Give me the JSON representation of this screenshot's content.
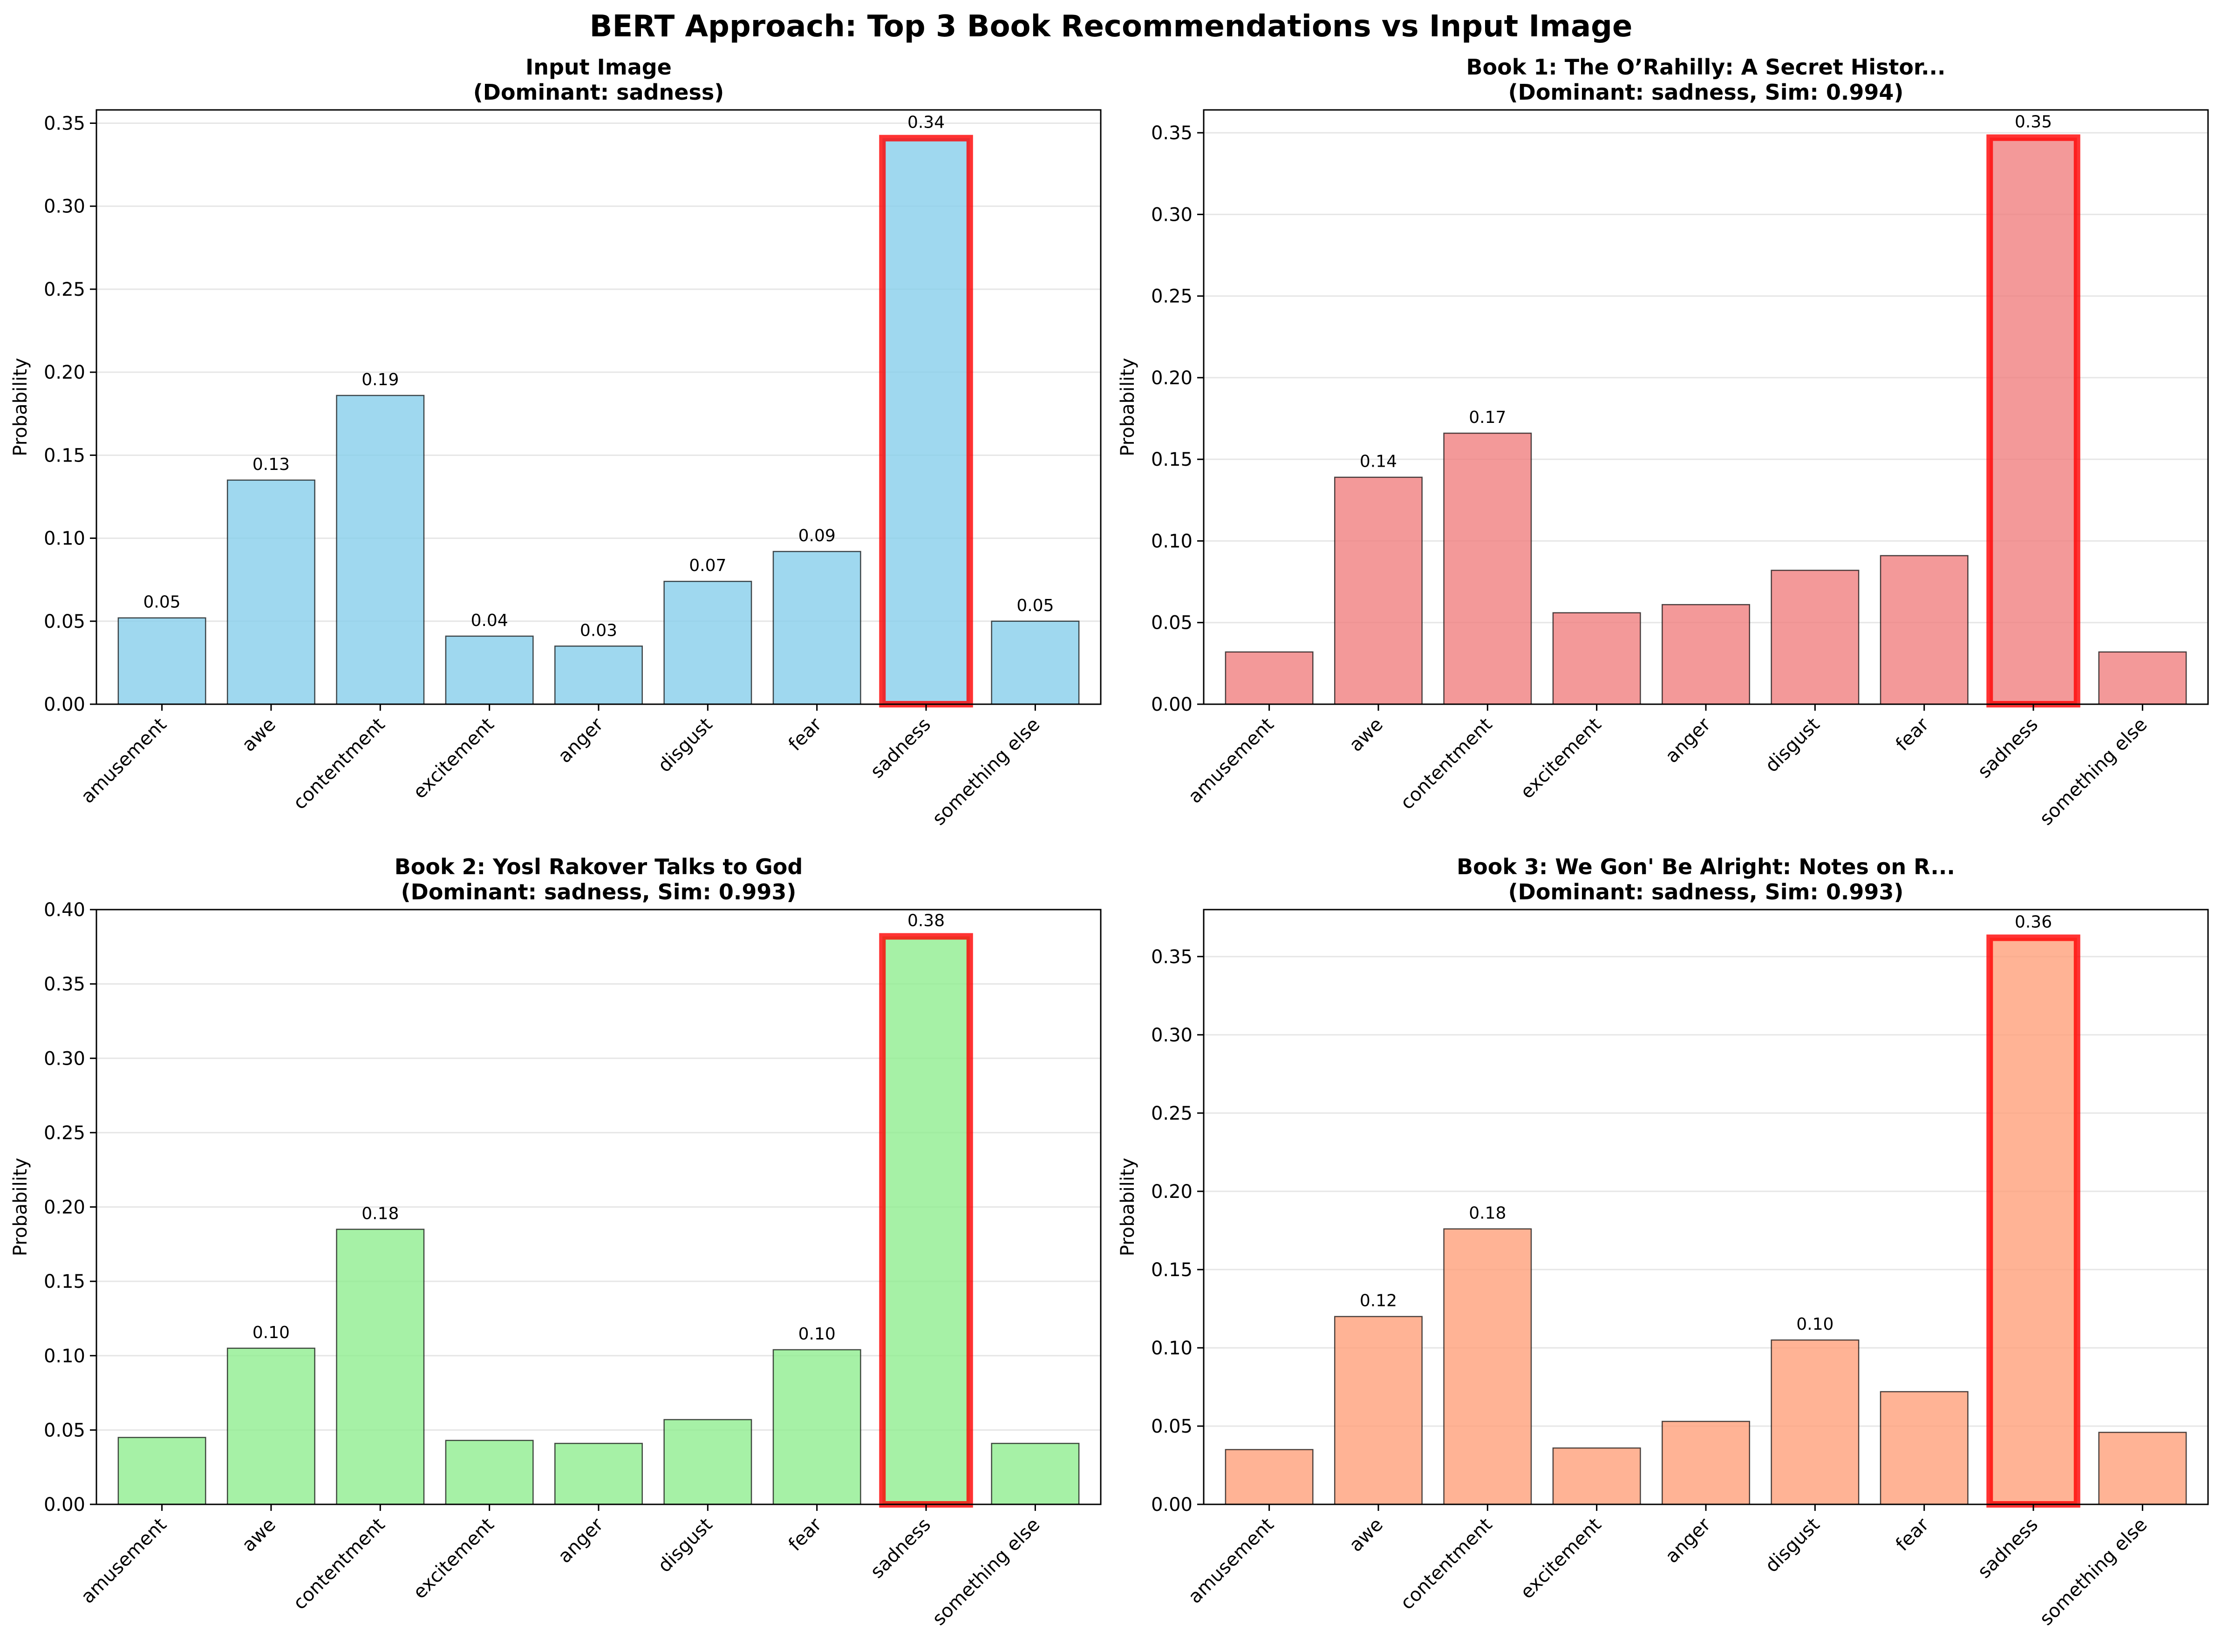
{
  "suptitle": "BERT Approach: Top 3 Book Recommendations vs Input Image",
  "chart_data": [
    {
      "type": "bar",
      "title_line1": "Input Image",
      "title_line2": "(Dominant: sadness)",
      "ylabel": "Probability",
      "categories": [
        "amusement",
        "awe",
        "contentment",
        "excitement",
        "anger",
        "disgust",
        "fear",
        "sadness",
        "something else"
      ],
      "values": [
        0.052,
        0.135,
        0.186,
        0.041,
        0.035,
        0.074,
        0.092,
        0.341,
        0.05
      ],
      "value_labels": [
        "0.05",
        "0.13",
        "0.19",
        "0.04",
        "0.03",
        "0.07",
        "0.09",
        "0.34",
        "0.05"
      ],
      "highlight_index": 7,
      "ylim": [
        0,
        0.358
      ],
      "yticks": [
        "0.00",
        "0.05",
        "0.10",
        "0.15",
        "0.20",
        "0.25",
        "0.30",
        "0.35"
      ],
      "grid": true,
      "bar_color": "#87ceeb",
      "highlight_color": "#ff0000"
    },
    {
      "type": "bar",
      "title_line1": "Book 1: The O’Rahilly: A Secret Histor...",
      "title_line2": "(Dominant: sadness, Sim: 0.994)",
      "ylabel": "Probability",
      "categories": [
        "amusement",
        "awe",
        "contentment",
        "excitement",
        "anger",
        "disgust",
        "fear",
        "sadness",
        "something else"
      ],
      "values": [
        0.032,
        0.139,
        0.166,
        0.056,
        0.061,
        0.082,
        0.091,
        0.347,
        0.032
      ],
      "value_labels": [
        "",
        "0.14",
        "0.17",
        "",
        "",
        "",
        "",
        "0.35",
        ""
      ],
      "highlight_index": 7,
      "ylim": [
        0,
        0.364
      ],
      "yticks": [
        "0.00",
        "0.05",
        "0.10",
        "0.15",
        "0.20",
        "0.25",
        "0.30",
        "0.35"
      ],
      "grid": true,
      "bar_color": "#f08080",
      "highlight_color": "#ff0000"
    },
    {
      "type": "bar",
      "title_line1": "Book 2: Yosl Rakover Talks to God",
      "title_line2": "(Dominant: sadness, Sim: 0.993)",
      "ylabel": "Probability",
      "categories": [
        "amusement",
        "awe",
        "contentment",
        "excitement",
        "anger",
        "disgust",
        "fear",
        "sadness",
        "something else"
      ],
      "values": [
        0.045,
        0.105,
        0.185,
        0.043,
        0.041,
        0.057,
        0.104,
        0.382,
        0.041
      ],
      "value_labels": [
        "",
        "0.10",
        "0.18",
        "",
        "",
        "",
        "0.10",
        "0.38",
        ""
      ],
      "highlight_index": 7,
      "ylim": [
        0,
        0.4
      ],
      "yticks": [
        "0.00",
        "0.05",
        "0.10",
        "0.15",
        "0.20",
        "0.25",
        "0.30",
        "0.35",
        "0.40"
      ],
      "grid": true,
      "bar_color": "#90ee90",
      "highlight_color": "#ff0000"
    },
    {
      "type": "bar",
      "title_line1": "Book 3: We Gon' Be Alright: Notes on R...",
      "title_line2": "(Dominant: sadness, Sim: 0.993)",
      "ylabel": "Probability",
      "categories": [
        "amusement",
        "awe",
        "contentment",
        "excitement",
        "anger",
        "disgust",
        "fear",
        "sadness",
        "something else"
      ],
      "values": [
        0.035,
        0.12,
        0.176,
        0.036,
        0.053,
        0.105,
        0.072,
        0.362,
        0.046
      ],
      "value_labels": [
        "",
        "0.12",
        "0.18",
        "",
        "",
        "0.10",
        "",
        "0.36",
        ""
      ],
      "highlight_index": 7,
      "ylim": [
        0,
        0.38
      ],
      "yticks": [
        "0.00",
        "0.05",
        "0.10",
        "0.15",
        "0.20",
        "0.25",
        "0.30",
        "0.35"
      ],
      "grid": true,
      "bar_color": "#ffa07a",
      "highlight_color": "#ff0000"
    }
  ]
}
